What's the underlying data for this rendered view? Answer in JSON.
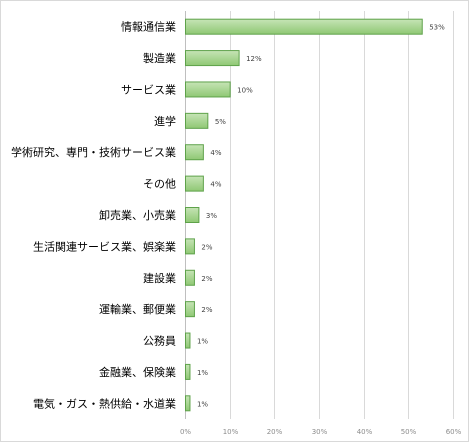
{
  "chart_data": {
    "type": "bar",
    "orientation": "horizontal",
    "categories": [
      "情報通信業",
      "製造業",
      "サービス業",
      "進学",
      "学術研究、専門・技術サービス業",
      "その他",
      "卸売業、小売業",
      "生活関連サービス業、娯楽業",
      "建設業",
      "運輸業、郵便業",
      "公務員",
      "金融業、保険業",
      "電気・ガス・熱供給・水道業"
    ],
    "values": [
      53,
      12,
      10,
      5,
      4,
      4,
      3,
      2,
      2,
      2,
      1,
      1,
      1
    ],
    "data_labels": [
      "53%",
      "12%",
      "10%",
      "5%",
      "4%",
      "4%",
      "3%",
      "2%",
      "2%",
      "2%",
      "1%",
      "1%",
      "1%"
    ],
    "xlim": [
      0,
      60
    ],
    "x_ticks": [
      0,
      10,
      20,
      30,
      40,
      50,
      60
    ],
    "x_tick_labels": [
      "0%",
      "10%",
      "20%",
      "30%",
      "40%",
      "50%",
      "60%"
    ],
    "grid": true,
    "bar_color_top": "#c6e4b6",
    "bar_color_bottom": "#8fc874",
    "bar_edge_color": "#5ea24a"
  }
}
